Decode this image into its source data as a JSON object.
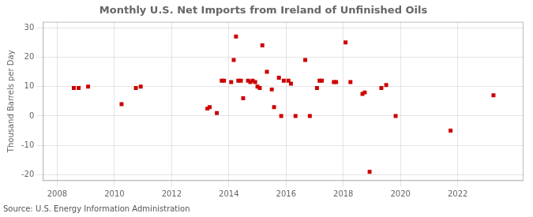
{
  "chart_data": {
    "type": "scatter",
    "title": "Monthly U.S. Net Imports from Ireland of Unfinished Oils",
    "ylabel": "Thousand Barrels per Day",
    "annotations": [
      "Source: U.S. Energy Information Administration"
    ],
    "x": [
      2008.58,
      2008.75,
      2009.08,
      2010.25,
      2010.75,
      2010.92,
      2013.25,
      2013.33,
      2013.58,
      2013.75,
      2013.83,
      2014.08,
      2014.17,
      2014.25,
      2014.33,
      2014.42,
      2014.5,
      2014.67,
      2014.75,
      2014.83,
      2014.92,
      2015.0,
      2015.08,
      2015.17,
      2015.33,
      2015.5,
      2015.58,
      2015.75,
      2015.83,
      2015.92,
      2016.08,
      2016.17,
      2016.33,
      2016.67,
      2016.83,
      2017.08,
      2017.17,
      2017.25,
      2017.67,
      2017.75,
      2018.08,
      2018.25,
      2018.67,
      2018.75,
      2018.92,
      2019.33,
      2019.5,
      2019.83,
      2021.75,
      2023.25
    ],
    "values": [
      9.5,
      9.5,
      10.0,
      4.0,
      9.5,
      10.0,
      2.5,
      3.0,
      1.0,
      12.0,
      12.0,
      11.5,
      19.0,
      27.0,
      12.0,
      12.0,
      6.0,
      12.0,
      11.5,
      12.0,
      11.5,
      10.0,
      9.5,
      24.0,
      15.0,
      9.0,
      3.0,
      13.0,
      0.0,
      12.0,
      12.0,
      11.0,
      0.0,
      19.0,
      0.0,
      9.5,
      12.0,
      12.0,
      11.5,
      11.5,
      25.0,
      11.5,
      7.5,
      8.0,
      -19.0,
      9.5,
      10.5,
      0.0,
      -5.0,
      7.0
    ],
    "color": "#cc0000",
    "marker": "square",
    "xlim": [
      2007.5,
      2024.3
    ],
    "ylim": [
      -22,
      32
    ],
    "xticks": [
      2008,
      2010,
      2012,
      2014,
      2016,
      2018,
      2020,
      2022
    ],
    "yticks": [
      -20,
      -10,
      0,
      10,
      20,
      30
    ],
    "grid": true
  }
}
